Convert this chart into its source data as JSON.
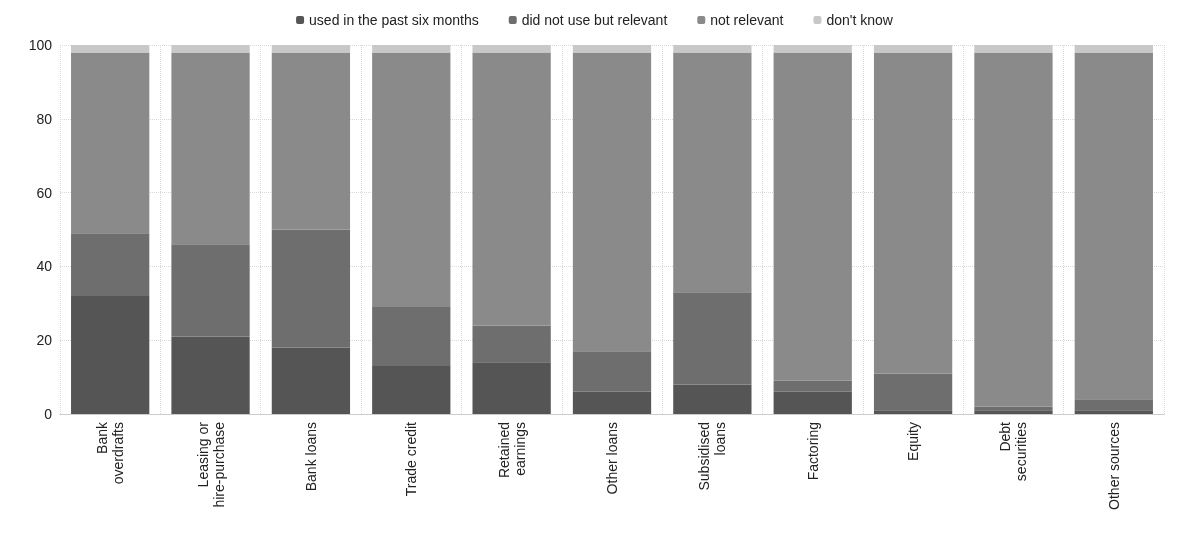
{
  "chart_data": {
    "type": "bar",
    "stacked": true,
    "categories": [
      "Bank\noverdrafts",
      "Leasing or\nhire-purchase",
      "Bank loans",
      "Trade credit",
      "Retained\nearnings",
      "Other loans",
      "Subsidised\nloans",
      "Factoring",
      "Equity",
      "Debt\nsecurities",
      "Other sources"
    ],
    "series": [
      {
        "name": "used in the past six months",
        "color": "#555555",
        "values": [
          32,
          21,
          18,
          13,
          14,
          6,
          8,
          6,
          1,
          1,
          1
        ]
      },
      {
        "name": "did not use but relevant",
        "color": "#6e6e6e",
        "values": [
          17,
          25,
          32,
          16,
          10,
          11,
          25,
          3,
          10,
          1,
          3
        ]
      },
      {
        "name": "not relevant",
        "color": "#8a8a8a",
        "values": [
          49,
          52,
          48,
          69,
          74,
          81,
          65,
          89,
          87,
          96,
          94
        ]
      },
      {
        "name": "don't know",
        "color": "#c8c8c8",
        "values": [
          2,
          2,
          2,
          2,
          2,
          2,
          2,
          2,
          2,
          2,
          2
        ]
      }
    ],
    "ylim": [
      0,
      100
    ],
    "yticks": [
      0,
      20,
      40,
      60,
      80,
      100
    ],
    "grid": true,
    "legend": "top"
  }
}
